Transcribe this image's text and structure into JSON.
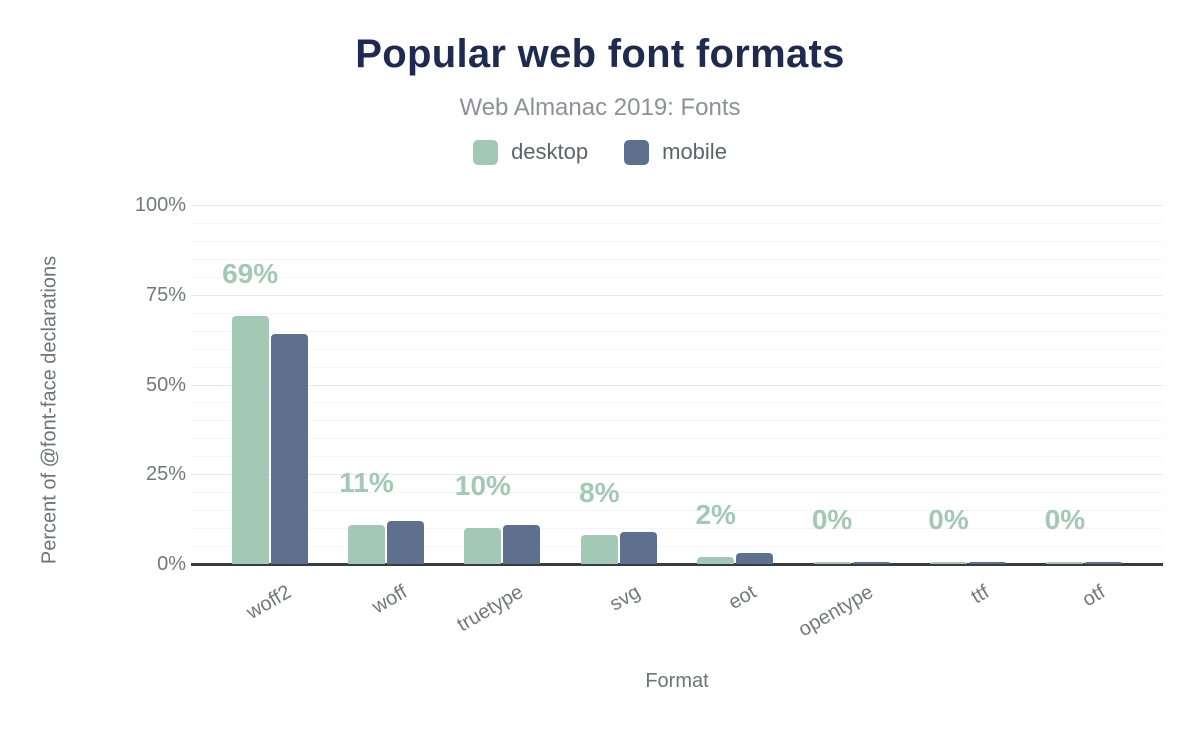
{
  "chart_data": {
    "type": "bar",
    "title": "Popular web font formats",
    "subtitle": "Web Almanac 2019: Fonts",
    "xlabel": "Format",
    "ylabel": "Percent of @font-face declarations",
    "categories": [
      "woff2",
      "woff",
      "truetype",
      "svg",
      "eot",
      "opentype",
      "ttf",
      "otf"
    ],
    "series": [
      {
        "name": "desktop",
        "color": "#a4c8b6",
        "values": [
          69,
          11,
          10,
          8,
          2,
          0.3,
          0.2,
          0.2
        ]
      },
      {
        "name": "mobile",
        "color": "#5e708e",
        "values": [
          64,
          12,
          11,
          9,
          3,
          0.5,
          0.4,
          0.4
        ]
      }
    ],
    "bar_labels": [
      "69%",
      "11%",
      "10%",
      "8%",
      "2%",
      "0%",
      "0%",
      "0%"
    ],
    "yticks": [
      {
        "label": "100%",
        "value": 100
      },
      {
        "label": "75%",
        "value": 75
      },
      {
        "label": "50%",
        "value": 50
      },
      {
        "label": "25%",
        "value": 25
      },
      {
        "label": "0%",
        "value": 0
      }
    ],
    "ylim": [
      0,
      100
    ],
    "grid": {
      "orientation": "horizontal",
      "minor_step": 5,
      "major_step": 25
    },
    "legend_position": "top",
    "colors": {
      "title": "#1f2b4e",
      "subtitle": "#8d9196",
      "axis_text": "#73787c",
      "data_label": "#a4c8b6",
      "baseline": "#383c40",
      "grid_major": "#e8eae8",
      "grid_minor": "#f4f5f4",
      "background": "#ffffff"
    }
  }
}
